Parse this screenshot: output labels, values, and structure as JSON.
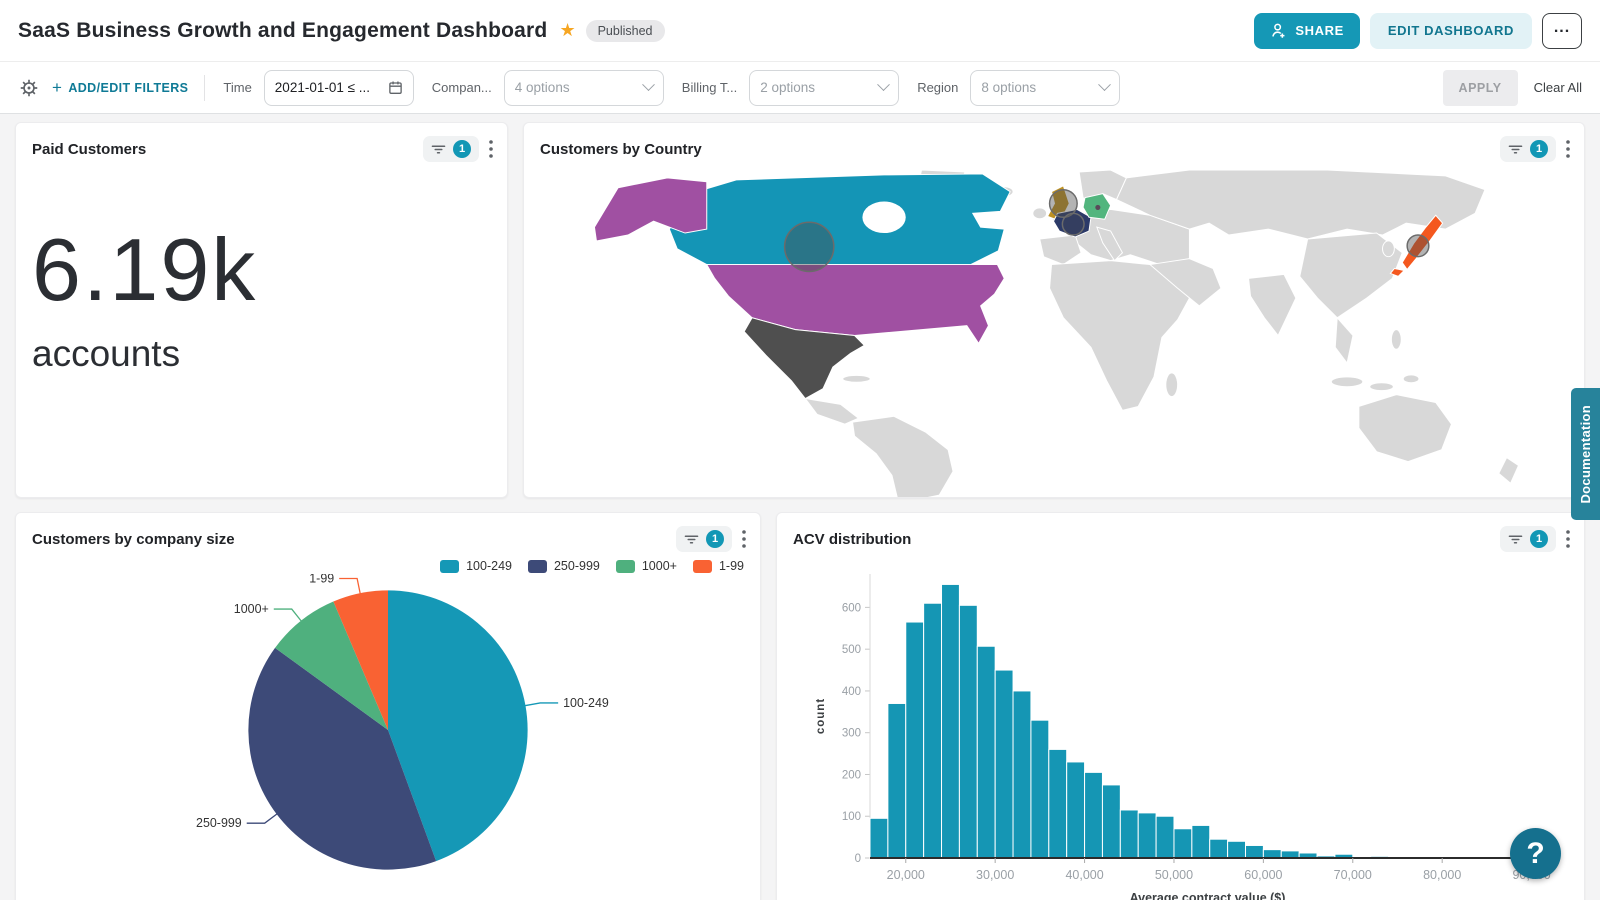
{
  "header": {
    "title": "SaaS Business Growth and Engagement Dashboard",
    "published_label": "Published",
    "share_label": "SHARE",
    "edit_label": "EDIT DASHBOARD",
    "more_label": "..."
  },
  "filter_bar": {
    "add_edit_label": "ADD/EDIT FILTERS",
    "filters": [
      {
        "label": "Time",
        "value": "2021-01-01 ≤ ...",
        "type": "date"
      },
      {
        "label": "Compan...",
        "value": "4 options",
        "type": "select"
      },
      {
        "label": "Billing T...",
        "value": "2 options",
        "type": "select"
      },
      {
        "label": "Region",
        "value": "8 options",
        "type": "select"
      }
    ],
    "apply_label": "APPLY",
    "clear_all_label": "Clear All"
  },
  "tiles": {
    "paid_customers": {
      "title": "Paid Customers",
      "value": "6.19k",
      "unit": "accounts",
      "filter_count": "1"
    },
    "customers_by_country": {
      "title": "Customers by Country",
      "filter_count": "1"
    },
    "company_size": {
      "title": "Customers by company size",
      "filter_count": "1"
    },
    "acv": {
      "title": "ACV distribution",
      "filter_count": "1"
    }
  },
  "chart_data": [
    {
      "type": "map",
      "title": "Customers by Country",
      "base_land_color": "#d8d8d8",
      "countries": [
        {
          "slug": "canada",
          "name": "Canada",
          "color": "#1495b6"
        },
        {
          "slug": "alaska",
          "name": "United States (Alaska)",
          "color": "#a050a2"
        },
        {
          "slug": "usa",
          "name": "United States",
          "color": "#a050a2",
          "bubble": "large"
        },
        {
          "slug": "mexico",
          "name": "Mexico",
          "color": "#4f4f4f"
        },
        {
          "slug": "uk",
          "name": "United Kingdom",
          "color": "#be9122",
          "bubble": "medium"
        },
        {
          "slug": "france",
          "name": "France",
          "color": "#2c3a68",
          "bubble": "small"
        },
        {
          "slug": "germany",
          "name": "Germany",
          "color": "#52b57e",
          "bubble": "dot"
        },
        {
          "slug": "japan",
          "name": "Japan",
          "color": "#f4581f",
          "bubble": "small"
        }
      ]
    },
    {
      "type": "pie",
      "title": "Customers by company size",
      "categories": [
        "100-249",
        "250-999",
        "1000+",
        "1-99"
      ],
      "values": [
        44.4,
        40.6,
        8.6,
        6.4
      ],
      "unit": "percent (approx)",
      "colors": [
        "#1598b6",
        "#3d4a78",
        "#4fb07e",
        "#f96233"
      ],
      "legend_position": "top-right"
    },
    {
      "type": "bar",
      "title": "ACV distribution",
      "xlabel": "Average contract value ($)",
      "ylabel": "count",
      "bin_start": 16000,
      "bin_width": 2000,
      "values": [
        95,
        370,
        565,
        610,
        655,
        605,
        507,
        450,
        400,
        330,
        260,
        230,
        205,
        175,
        115,
        108,
        100,
        70,
        78,
        45,
        40,
        30,
        20,
        17,
        12,
        5,
        9,
        1,
        4
      ],
      "xlim": [
        16000,
        91500
      ],
      "ylim": [
        0,
        680
      ],
      "x_ticks": [
        20000,
        30000,
        40000,
        50000,
        60000,
        70000,
        80000,
        90000
      ],
      "y_ticks": [
        0,
        100,
        200,
        300,
        400,
        500,
        600
      ],
      "bar_color": "#1596b4",
      "grid": false
    }
  ],
  "side": {
    "documentation_label": "Documentation",
    "help_label": "?"
  },
  "colors": {
    "accent_teal": "#1297b5",
    "kpi_text": "#2b2e33",
    "axis_text": "#9aa0a6"
  }
}
